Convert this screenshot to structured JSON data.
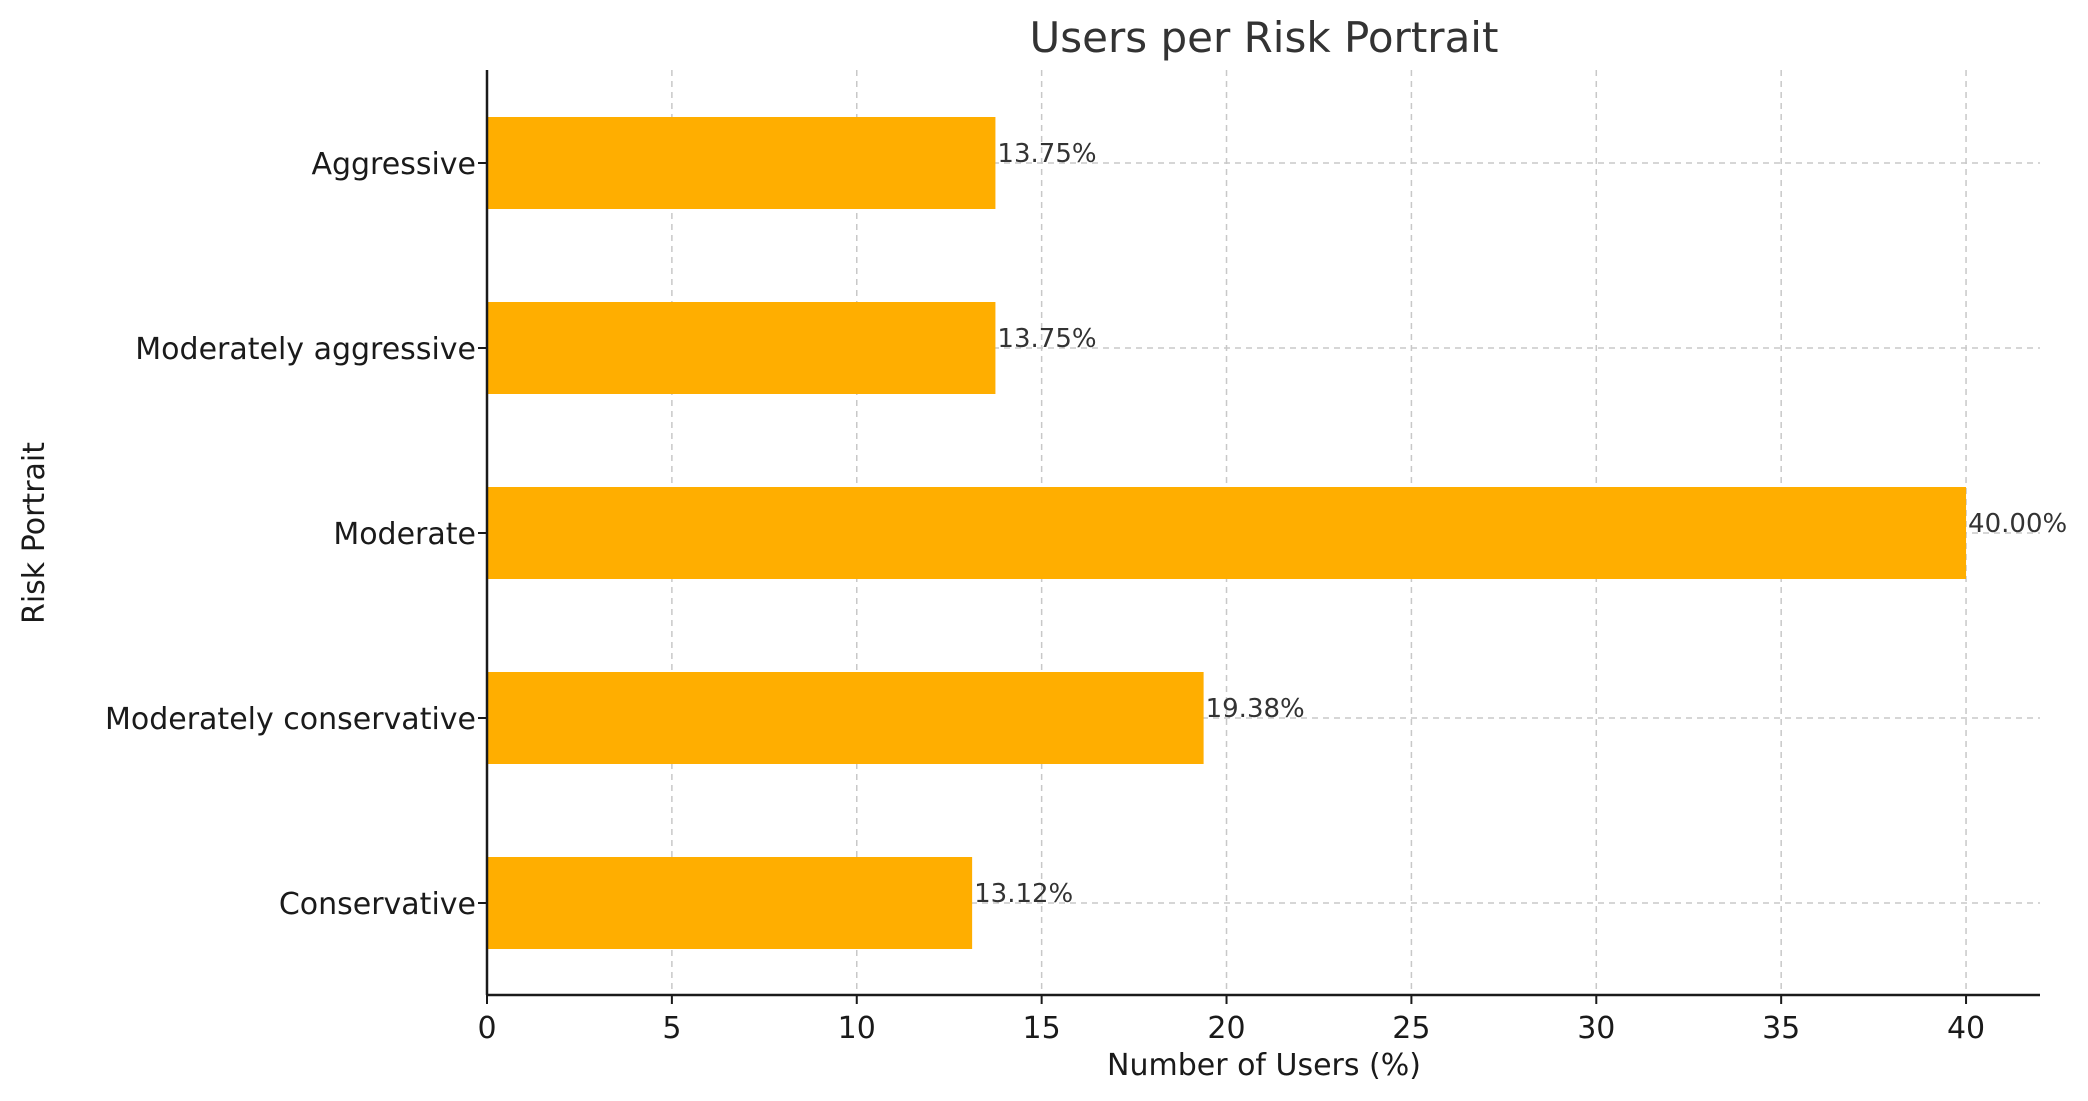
{
  "chart_data": {
    "type": "bar",
    "orientation": "horizontal",
    "title": "Users per Risk Portrait",
    "xlabel": "Number of Users (%)",
    "ylabel": "Risk Portrait",
    "categories": [
      "Aggressive",
      "Moderately aggressive",
      "Moderate",
      "Moderately conservative",
      "Conservative"
    ],
    "values": [
      13.75,
      13.75,
      40.0,
      19.38,
      13.12
    ],
    "data_labels": [
      "13.75%",
      "13.75%",
      "40.00%",
      "19.38%",
      "13.12%"
    ],
    "xlim": [
      0,
      42
    ],
    "xticks": [
      "0",
      "5",
      "10",
      "15",
      "20",
      "25",
      "30",
      "35",
      "40"
    ],
    "grid": true,
    "bar_color": "#FFAE00"
  }
}
